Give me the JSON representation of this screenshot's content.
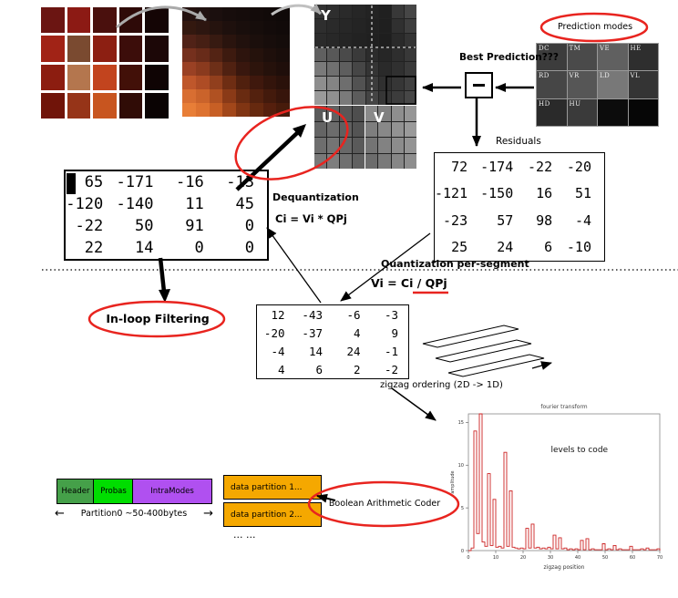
{
  "photos": {
    "original": [
      "#6b1512",
      "#8c1a14",
      "#4a100d",
      "#2e0a08",
      "#140505",
      "#a12316",
      "#7a4a30",
      "#8c1f12",
      "#3c0d0a",
      "#1c0707",
      "#8c1d10",
      "#b4764e",
      "#c2441e",
      "#421008",
      "#0f0404",
      "#701409",
      "#963418",
      "#c8551f",
      "#300c06",
      "#0a0303"
    ],
    "pixelated": [
      "#241210",
      "#201110",
      "#1b0f0e",
      "#170d0c",
      "#150c0b",
      "#130b0a",
      "#110a09",
      "#0f0908",
      "#33180f",
      "#2d1610",
      "#25130e",
      "#1e100d",
      "#190e0c",
      "#160d0b",
      "#130b0a",
      "#110a09",
      "#502217",
      "#461f14",
      "#371a11",
      "#2a140e",
      "#21110d",
      "#1b0f0c",
      "#170d0b",
      "#140c0a",
      "#75301d",
      "#682b19",
      "#532314",
      "#3d1a0f",
      "#2d140d",
      "#25120c",
      "#1e0f0b",
      "#190d0a",
      "#9a4124",
      "#8a3a1e",
      "#6d2f18",
      "#502111",
      "#39170e",
      "#2d140c",
      "#25110b",
      "#1f0e0a",
      "#bf572b",
      "#ae4c25",
      "#913f1d",
      "#6e2d13",
      "#50200e",
      "#3f180d",
      "#33140b",
      "#2a110a",
      "#d86e32",
      "#ca632b",
      "#b05122",
      "#8a3a17",
      "#692b11",
      "#53210e",
      "#431a0c",
      "#37150b",
      "#e87e37",
      "#dd7230",
      "#c75f25",
      "#a2471a",
      "#803513",
      "#66290f",
      "#551f0d",
      "#471b0b"
    ]
  },
  "planes": {
    "y_label": "Y",
    "u_label": "U",
    "v_label": "V",
    "y_cells": [
      "#323232",
      "#2e2e2e",
      "#2a2a2a",
      "#262626",
      "#232323",
      "#202020",
      "#383838",
      "#464646",
      "#2e2e2e",
      "#2a2a2a",
      "#272727",
      "#242424",
      "#212121",
      "#1f1f1f",
      "#303030",
      "#3e3e3e",
      "#2b2b2b",
      "#282828",
      "#252525",
      "#222222",
      "#202020",
      "#1e1e1e",
      "#2a2a2a",
      "#343434",
      "#606060",
      "#585858",
      "#4a4a4a",
      "#3a3a3a",
      "#2c2c2c",
      "#262626",
      "#2e2e2e",
      "#383838",
      "#7a7a7a",
      "#707070",
      "#5e5e5e",
      "#464646",
      "#343434",
      "#2a2a2a",
      "#303030",
      "#3a3a3a",
      "#8e8e8e",
      "#848484",
      "#6e6e6e",
      "#525252",
      "#3c3c3c",
      "#303030",
      "#363636",
      "#404040",
      "#9a9a9a",
      "#909090",
      "#7a7a7a",
      "#5c5c5c",
      "#444444",
      "#363636",
      "#3c3c3c",
      "#464646"
    ],
    "u_cells": [
      "#5a5a5a",
      "#626262",
      "#585858",
      "#4e4e4e",
      "#646464",
      "#6c6c6c",
      "#606060",
      "#545454",
      "#6e6e6e",
      "#747474",
      "#686868",
      "#5a5a5a",
      "#787878",
      "#7e7e7e",
      "#707070",
      "#606060"
    ],
    "v_cells": [
      "#8a8a8a",
      "#808080",
      "#8e8e8e",
      "#969696",
      "#7e7e7e",
      "#888888",
      "#929292",
      "#9a9a9a",
      "#747474",
      "#828282",
      "#8c8c8c",
      "#949494",
      "#6c6c6c",
      "#7a7a7a",
      "#868686",
      "#8e8e8e"
    ]
  },
  "prediction": {
    "ellipse_label": "Prediction modes",
    "best_label": "Best Prediction???",
    "modes": [
      {
        "label": "DC",
        "color": "#3c3c3c"
      },
      {
        "label": "TM",
        "color": "#4a4a4a"
      },
      {
        "label": "VE",
        "color": "#606060"
      },
      {
        "label": "HE",
        "color": "#2e2e2e"
      },
      {
        "label": "RD",
        "color": "#464646"
      },
      {
        "label": "VR",
        "color": "#565656"
      },
      {
        "label": "LD",
        "color": "#787878"
      },
      {
        "label": "VL",
        "color": "#343434"
      },
      {
        "label": "HD",
        "color": "#2a2a2a"
      },
      {
        "label": "HU",
        "color": "#3a3a3a"
      },
      {
        "label": "",
        "color": "#0c0c0c"
      },
      {
        "label": "",
        "color": "#060606"
      }
    ]
  },
  "residuals": {
    "label": "Residuals",
    "matrix": [
      [
        72,
        -174,
        -22,
        -20
      ],
      [
        -121,
        -150,
        16,
        51
      ],
      [
        -23,
        57,
        98,
        -4
      ],
      [
        25,
        24,
        6,
        -10
      ]
    ]
  },
  "matrix_dequantized": [
    [
      65,
      -171,
      -16,
      -13
    ],
    [
      -120,
      -140,
      11,
      45
    ],
    [
      -22,
      50,
      91,
      0
    ],
    [
      22,
      14,
      0,
      0
    ]
  ],
  "matrix_quantized": [
    [
      12,
      -43,
      -6,
      -3
    ],
    [
      -20,
      -37,
      4,
      9
    ],
    [
      -4,
      14,
      24,
      -1
    ],
    [
      4,
      6,
      2,
      -2
    ]
  ],
  "labels": {
    "dequantization_title": "Dequantization",
    "dequantization_formula": "Ci = Vi * QPj",
    "quantization": "Quantization per-segment",
    "inverse_formula": "Vi = Ci / QPj",
    "inloop": "In-loop Filtering",
    "zigzag": "zigzag ordering  (2D -> 1D)"
  },
  "bitstream": {
    "header": "Header",
    "probas": "Probas",
    "intramodes": "IntraModes",
    "partition0": "Partition0 ~50-400bytes",
    "dp1": "data partition 1...",
    "dp2": "data partition 2...",
    "dots": "...   ...",
    "bac": "Boolean Arithmetic Coder"
  },
  "colors": {
    "header_green": "#45a049",
    "probas_green": "#00dd00",
    "intramodes_purple": "#b050f0",
    "partition_orange": "#f5a800",
    "accent_red": "#e8241f"
  },
  "chart_data": {
    "type": "line",
    "title": "fourier transform",
    "annotation": "levels to code",
    "xlabel": "zigzag position",
    "ylabel": "amplitude",
    "xlim": [
      0,
      70
    ],
    "ylim": [
      0,
      16
    ],
    "xticks": [
      0,
      10,
      20,
      30,
      40,
      50,
      60,
      70
    ],
    "yticks": [
      0,
      5,
      10,
      15
    ],
    "color": "#cc2222",
    "values": [
      0.3,
      14,
      2,
      16,
      1,
      0.5,
      9,
      0.6,
      6,
      0.4,
      0.5,
      0.3,
      11.5,
      0.5,
      7,
      0.4,
      0.3,
      0.2,
      0.3,
      0.2,
      2.6,
      0.3,
      3.1,
      0.3,
      0.4,
      0.2,
      0.3,
      0.2,
      0.4,
      0.2,
      1.8,
      0.2,
      1.5,
      0.2,
      0.3,
      0.1,
      0.2,
      0.1,
      0.2,
      0.1,
      1.2,
      0.1,
      1.4,
      0.1,
      0.2,
      0.1,
      0.1,
      0.1,
      0.8,
      0.1,
      0.2,
      0.1,
      0.6,
      0.1,
      0.2,
      0.1,
      0.1,
      0.1,
      0.5,
      0.1,
      0.1,
      0.1,
      0.2,
      0.1,
      0.3,
      0.1,
      0.1,
      0.1,
      0.2,
      0.1
    ]
  }
}
